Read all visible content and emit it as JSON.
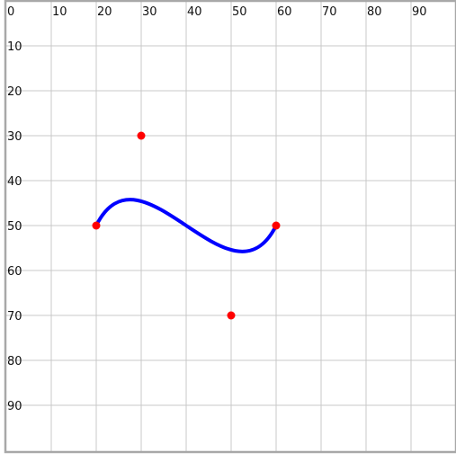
{
  "chart_data": {
    "type": "scatter",
    "title": "",
    "xlabel": "",
    "ylabel": "",
    "xlim": [
      0,
      100
    ],
    "ylim": [
      0,
      100
    ],
    "y_axis_inverted": true,
    "grid": true,
    "x_ticks": [
      0,
      10,
      20,
      30,
      40,
      50,
      60,
      70,
      80,
      90
    ],
    "y_ticks": [
      10,
      20,
      30,
      40,
      50,
      60,
      70,
      80,
      90
    ],
    "x_tick_labels": [
      "0",
      "10",
      "20",
      "30",
      "40",
      "50",
      "60",
      "70",
      "80",
      "90"
    ],
    "y_tick_labels": [
      "10",
      "20",
      "30",
      "40",
      "50",
      "60",
      "70",
      "80",
      "90"
    ],
    "points": [
      {
        "x": 20,
        "y": 50
      },
      {
        "x": 30,
        "y": 30
      },
      {
        "x": 50,
        "y": 70
      },
      {
        "x": 60,
        "y": 50
      }
    ],
    "curve": {
      "type": "cubic-bezier",
      "start": {
        "x": 20,
        "y": 50
      },
      "control1": {
        "x": 30,
        "y": 30
      },
      "control2": {
        "x": 50,
        "y": 70
      },
      "end": {
        "x": 60,
        "y": 50
      }
    },
    "colors": {
      "curve": "#0000ff",
      "points": "#ff0000",
      "grid": "#c8c8c8",
      "frame": "#a8a8a8"
    }
  }
}
